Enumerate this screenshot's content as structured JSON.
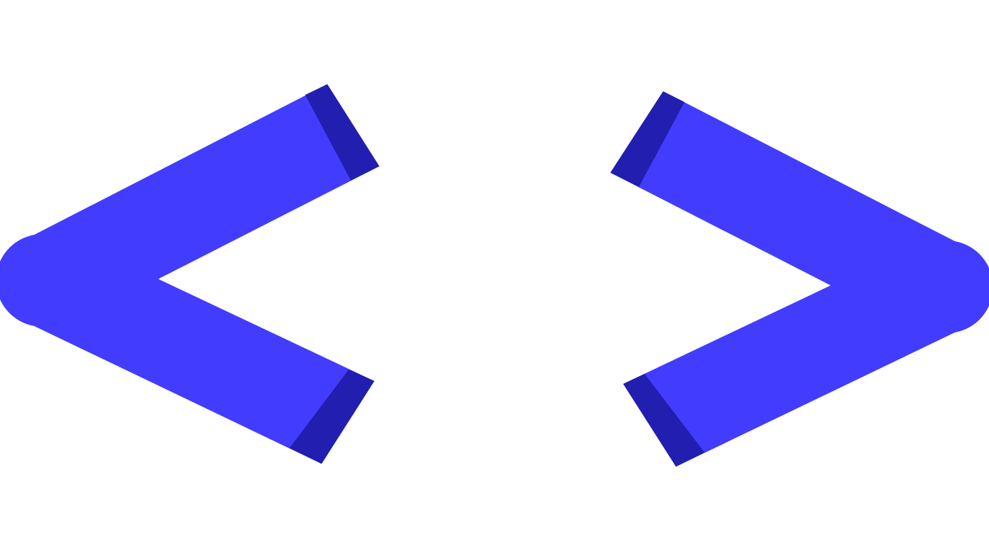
{
  "icon": {
    "name": "code-brackets-icon",
    "colors": {
      "primary": "#423cff",
      "shadow": "#211eb0",
      "background": "#ffffff"
    }
  }
}
